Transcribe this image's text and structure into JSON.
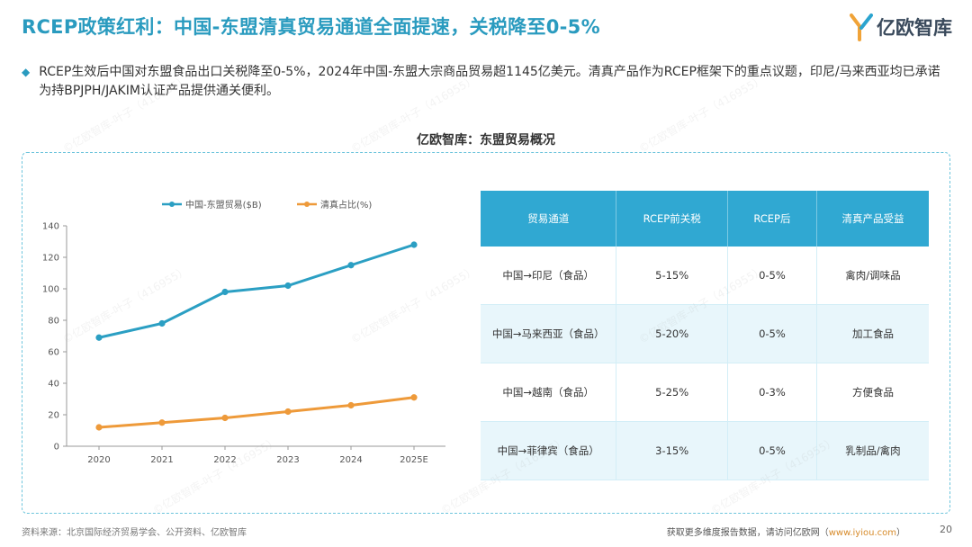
{
  "header": {
    "title": "RCEP政策红利：中国-东盟清真贸易通道全面提速，关税降至0-5%",
    "logo_text": "亿欧智库"
  },
  "intro": {
    "text": "RCEP生效后中国对东盟食品出口关税降至0-5%，2024年中国-东盟大宗商品贸易超1145亿美元。清真产品作为RCEP框架下的重点议题，印尼/马来西亚均已承诺为持BPJPH/JAKIM认证产品提供通关便利。"
  },
  "section_title": "亿欧智库：东盟贸易概况",
  "chart_data": {
    "type": "line",
    "categories": [
      "2020",
      "2021",
      "2022",
      "2023",
      "2024",
      "2025E"
    ],
    "series": [
      {
        "name": "中国-东盟贸易($B)",
        "values": [
          69,
          78,
          98,
          102,
          115,
          128
        ],
        "color": "#2b9fc3"
      },
      {
        "name": "清真占比(%)",
        "values": [
          12,
          15,
          18,
          22,
          26,
          31
        ],
        "color": "#ee9a3a"
      }
    ],
    "yticks": [
      "0",
      "20",
      "40",
      "60",
      "80",
      "100",
      "120",
      "140"
    ],
    "ylim": [
      0,
      140
    ],
    "title": "",
    "xlabel": "",
    "ylabel": "",
    "legend": "top"
  },
  "table": {
    "headers": [
      "贸易通道",
      "RCEP前关税",
      "RCEP后",
      "清真产品受益"
    ],
    "rows": [
      [
        "中国→印尼（食品）",
        "5-15%",
        "0-5%",
        "禽肉/调味品"
      ],
      [
        "中国→马来西亚（食品）",
        "5-20%",
        "0-5%",
        "加工食品"
      ],
      [
        "中国→越南（食品）",
        "5-25%",
        "0-3%",
        "方便食品"
      ],
      [
        "中国→菲律宾（食品）",
        "3-15%",
        "0-5%",
        "乳制品/禽肉"
      ]
    ]
  },
  "footer": {
    "source": "资料来源：北京国际经济贸易学会、公开资料、亿欧智库",
    "more_prefix": "获取更多维度报告数据，请访问亿欧网（",
    "more_link": "www.iyiou.com",
    "more_suffix": "）",
    "page_number": "20"
  },
  "watermark": "©亿欧智库-叶子（416955）"
}
